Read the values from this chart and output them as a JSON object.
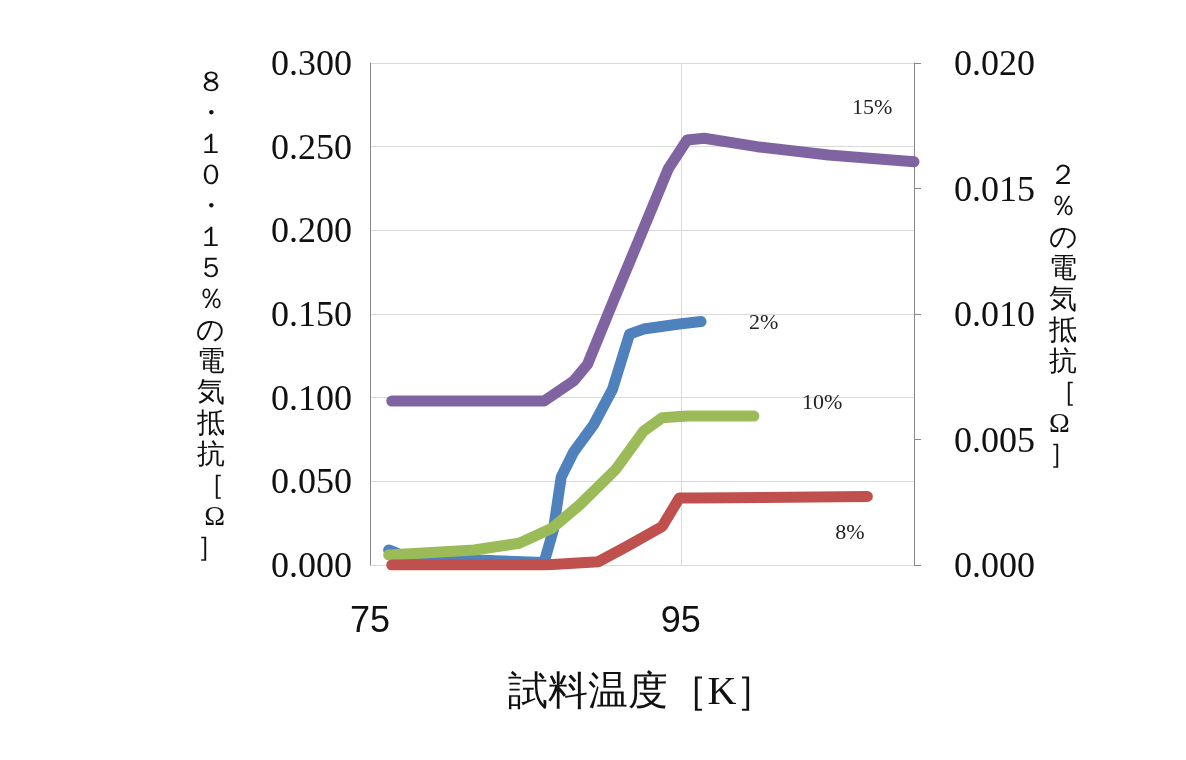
{
  "chart_data": {
    "type": "line",
    "xlabel": "試料温度［K］",
    "ylabel": "８・１０・１５％の電気抵抗［Ω］",
    "y2label": "２％の電気抵抗［Ω］",
    "xlim": [
      75,
      110
    ],
    "xticks": [
      75,
      95
    ],
    "ylim": [
      0,
      0.3
    ],
    "yticks": [
      {
        "value": 0,
        "label": "0.000"
      },
      {
        "value": 0.05,
        "label": "0.050"
      },
      {
        "value": 0.1,
        "label": "0.100"
      },
      {
        "value": 0.15,
        "label": "0.150"
      },
      {
        "value": 0.2,
        "label": "0.200"
      },
      {
        "value": 0.25,
        "label": "0.250"
      },
      {
        "value": 0.3,
        "label": "0.300"
      }
    ],
    "y2lim": [
      0,
      0.02
    ],
    "y2ticks": [
      {
        "value": 0,
        "label": "0.000"
      },
      {
        "value": 0.005,
        "label": "0.005"
      },
      {
        "value": 0.01,
        "label": "0.010"
      },
      {
        "value": 0.015,
        "label": "0.015"
      },
      {
        "value": 0.02,
        "label": "0.020"
      }
    ],
    "grid": true,
    "legend": false,
    "marker": "none",
    "line_style": "solid",
    "series": [
      {
        "name": "15%",
        "color": "#8064a2",
        "x": [
          76.4,
          80,
          86.2,
          88.1,
          89,
          90.8,
          92.6,
          94.2,
          95.4,
          96.5,
          99.9,
          104.5,
          110
        ],
        "values": [
          0.098,
          0.098,
          0.098,
          0.11,
          0.12,
          0.161,
          0.201,
          0.237,
          0.254,
          0.255,
          0.25,
          0.245,
          0.241
        ]
      },
      {
        "name": "2%",
        "color": "#4f81bd",
        "axis": "y2",
        "x": [
          76.2,
          77,
          81.7,
          86.2,
          86.8,
          87.3,
          88.1,
          89.4,
          90.6,
          91.3,
          91.7,
          92.6,
          94.9,
          96.3
        ],
        "values": [
          0.0006,
          0.0004,
          0.0002,
          0.0001,
          0.0014,
          0.0035,
          0.0045,
          0.0056,
          0.007,
          0.0084,
          0.0092,
          0.0094,
          0.0096,
          0.0097
        ]
      },
      {
        "name": "10%",
        "color": "#9bbb59",
        "x": [
          76.2,
          81.7,
          84.6,
          86.7,
          88.5,
          90.8,
          92.6,
          93.8,
          95.4,
          99.7
        ],
        "values": [
          0.006,
          0.009,
          0.013,
          0.022,
          0.036,
          0.057,
          0.08,
          0.088,
          0.089,
          0.089
        ]
      },
      {
        "name": "8%",
        "color": "#c0504d",
        "x": [
          76.4,
          86.2,
          89.7,
          91.5,
          93.8,
          94.9,
          95.8,
          107
        ],
        "values": [
          0,
          0,
          0.002,
          0.011,
          0.023,
          0.04,
          0.04,
          0.041
        ]
      }
    ]
  }
}
